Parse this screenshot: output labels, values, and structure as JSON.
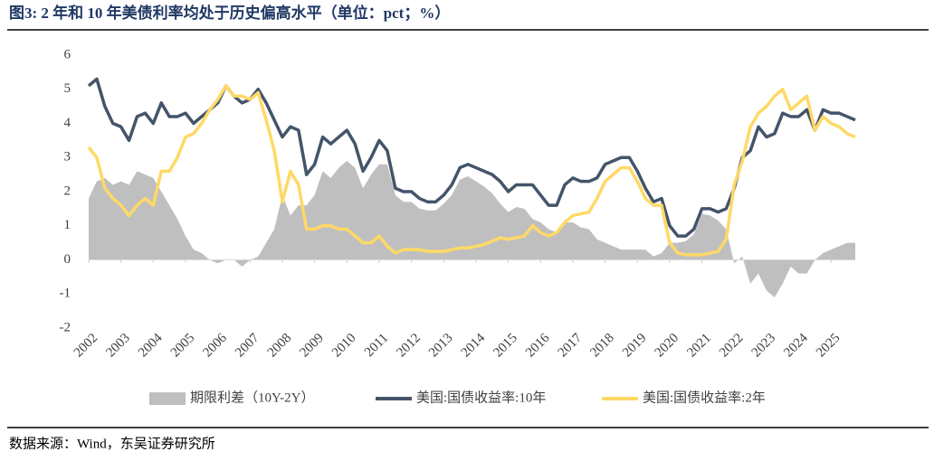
{
  "chart_data": {
    "type": "line",
    "title": "图3:  2 年和 10 年美债利率均处于历史偏高水平（单位：pct；%）",
    "source": "数据来源：Wind，东吴证券研究所",
    "x": [
      2002,
      2002.25,
      2002.5,
      2002.75,
      2003,
      2003.25,
      2003.5,
      2003.75,
      2004,
      2004.25,
      2004.5,
      2004.75,
      2005,
      2005.25,
      2005.5,
      2005.75,
      2006,
      2006.25,
      2006.5,
      2006.75,
      2007,
      2007.25,
      2007.5,
      2007.75,
      2008,
      2008.25,
      2008.5,
      2008.75,
      2009,
      2009.25,
      2009.5,
      2009.75,
      2010,
      2010.25,
      2010.5,
      2010.75,
      2011,
      2011.25,
      2011.5,
      2011.75,
      2012,
      2012.25,
      2012.5,
      2012.75,
      2013,
      2013.25,
      2013.5,
      2013.75,
      2014,
      2014.25,
      2014.5,
      2014.75,
      2015,
      2015.25,
      2015.5,
      2015.75,
      2016,
      2016.25,
      2016.5,
      2016.75,
      2017,
      2017.25,
      2017.5,
      2017.75,
      2018,
      2018.25,
      2018.5,
      2018.75,
      2019,
      2019.25,
      2019.5,
      2019.75,
      2020,
      2020.25,
      2020.5,
      2020.75,
      2021,
      2021.25,
      2021.5,
      2021.75,
      2022,
      2022.25,
      2022.5,
      2022.75,
      2023,
      2023.25,
      2023.5,
      2023.75,
      2024,
      2024.25,
      2024.5,
      2024.75,
      2025,
      2025.25,
      2025.5,
      2025.75
    ],
    "xlim": [
      2002,
      2025.75
    ],
    "xticks": [
      2002,
      2003,
      2004,
      2005,
      2006,
      2007,
      2008,
      2009,
      2010,
      2011,
      2012,
      2013,
      2014,
      2015,
      2016,
      2017,
      2018,
      2019,
      2020,
      2021,
      2022,
      2023,
      2024,
      2025
    ],
    "ylim": [
      -2,
      6
    ],
    "yticks": [
      -2,
      -1,
      0,
      1,
      2,
      3,
      4,
      5,
      6
    ],
    "grid": false,
    "legend": "bottom",
    "series": [
      {
        "name": "期限利差（10Y-2Y）",
        "kind": "area",
        "color": "#bfbfbf",
        "values": [
          1.8,
          2.3,
          2.4,
          2.2,
          2.3,
          2.2,
          2.6,
          2.5,
          2.4,
          2.0,
          1.6,
          1.2,
          0.7,
          0.3,
          0.2,
          0.0,
          -0.1,
          0.0,
          0.0,
          -0.2,
          0.0,
          0.1,
          0.5,
          0.9,
          1.9,
          1.3,
          1.6,
          1.6,
          1.9,
          2.6,
          2.4,
          2.7,
          2.9,
          2.7,
          2.1,
          2.5,
          2.8,
          2.8,
          1.9,
          1.7,
          1.7,
          1.5,
          1.45,
          1.45,
          1.65,
          1.9,
          2.35,
          2.45,
          2.3,
          2.15,
          1.95,
          1.65,
          1.4,
          1.55,
          1.5,
          1.2,
          1.1,
          0.9,
          0.8,
          1.1,
          1.1,
          0.95,
          0.9,
          0.6,
          0.5,
          0.4,
          0.3,
          0.3,
          0.3,
          0.3,
          0.1,
          0.2,
          0.5,
          0.5,
          0.55,
          0.75,
          1.35,
          1.3,
          1.15,
          0.9,
          -0.1,
          0.1,
          -0.7,
          -0.4,
          -0.9,
          -1.1,
          -0.7,
          -0.2,
          -0.4,
          -0.4,
          0.0,
          0.2,
          0.3,
          0.4,
          0.5,
          0.5
        ]
      },
      {
        "name": "美国:国债收益率:10年",
        "kind": "line",
        "color": "#44546a",
        "values": [
          5.1,
          5.3,
          4.5,
          4.0,
          3.9,
          3.5,
          4.2,
          4.3,
          4.0,
          4.6,
          4.2,
          4.2,
          4.3,
          4.0,
          4.2,
          4.4,
          4.6,
          5.1,
          4.8,
          4.6,
          4.7,
          5.0,
          4.6,
          4.1,
          3.6,
          3.9,
          3.8,
          2.5,
          2.8,
          3.6,
          3.4,
          3.6,
          3.8,
          3.4,
          2.6,
          3.0,
          3.5,
          3.2,
          2.1,
          2.0,
          2.0,
          1.8,
          1.7,
          1.7,
          1.9,
          2.2,
          2.7,
          2.8,
          2.7,
          2.6,
          2.5,
          2.3,
          2.0,
          2.2,
          2.2,
          2.2,
          1.9,
          1.6,
          1.6,
          2.2,
          2.4,
          2.3,
          2.3,
          2.4,
          2.8,
          2.9,
          3.0,
          3.0,
          2.6,
          2.1,
          1.7,
          1.8,
          1.0,
          0.7,
          0.7,
          0.9,
          1.5,
          1.5,
          1.4,
          1.5,
          2.1,
          3.0,
          3.2,
          3.9,
          3.6,
          3.7,
          4.3,
          4.2,
          4.2,
          4.4,
          3.8,
          4.4,
          4.3,
          4.3,
          4.2,
          4.1
        ]
      },
      {
        "name": "美国:国债收益率:2年",
        "kind": "line",
        "color": "#ffd966",
        "values": [
          3.3,
          3.0,
          2.1,
          1.8,
          1.6,
          1.3,
          1.6,
          1.8,
          1.6,
          2.6,
          2.6,
          3.0,
          3.6,
          3.7,
          4.0,
          4.4,
          4.7,
          5.1,
          4.8,
          4.8,
          4.7,
          4.9,
          4.1,
          3.2,
          1.7,
          2.6,
          2.2,
          0.9,
          0.9,
          1.0,
          1.0,
          0.9,
          0.9,
          0.7,
          0.5,
          0.5,
          0.7,
          0.4,
          0.2,
          0.3,
          0.3,
          0.3,
          0.25,
          0.25,
          0.25,
          0.3,
          0.35,
          0.35,
          0.4,
          0.45,
          0.55,
          0.65,
          0.6,
          0.65,
          0.7,
          1.0,
          0.8,
          0.7,
          0.8,
          1.1,
          1.3,
          1.35,
          1.4,
          1.8,
          2.3,
          2.5,
          2.7,
          2.7,
          2.3,
          1.8,
          1.6,
          1.6,
          0.5,
          0.2,
          0.15,
          0.15,
          0.15,
          0.2,
          0.25,
          0.6,
          2.2,
          2.9,
          3.9,
          4.3,
          4.5,
          4.8,
          5.0,
          4.4,
          4.6,
          4.8,
          3.8,
          4.2,
          4.0,
          3.9,
          3.7,
          3.6
        ]
      }
    ]
  }
}
